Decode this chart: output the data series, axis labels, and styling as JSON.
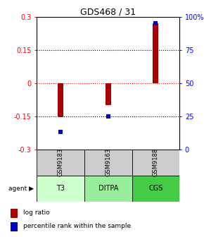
{
  "title": "GDS468 / 31",
  "samples": [
    "GSM9183",
    "GSM9163",
    "GSM9188"
  ],
  "agents": [
    "T3",
    "DITPA",
    "CGS"
  ],
  "log_ratios": [
    -0.155,
    -0.1,
    0.27
  ],
  "percentile_ranks": [
    13,
    25,
    95
  ],
  "bar_color": "#aa0000",
  "dot_color": "#0000cc",
  "ylim_left": [
    -0.3,
    0.3
  ],
  "ylim_right": [
    0,
    100
  ],
  "yticks_left": [
    -0.3,
    -0.15,
    0,
    0.15,
    0.3
  ],
  "yticks_right": [
    0,
    25,
    50,
    75,
    100
  ],
  "agent_colors": [
    "#ccffcc",
    "#99ee99",
    "#44cc44"
  ],
  "sample_bg": "#cccccc",
  "legend_red_label": "log ratio",
  "legend_blue_label": "percentile rank within the sample",
  "bar_width": 0.12
}
